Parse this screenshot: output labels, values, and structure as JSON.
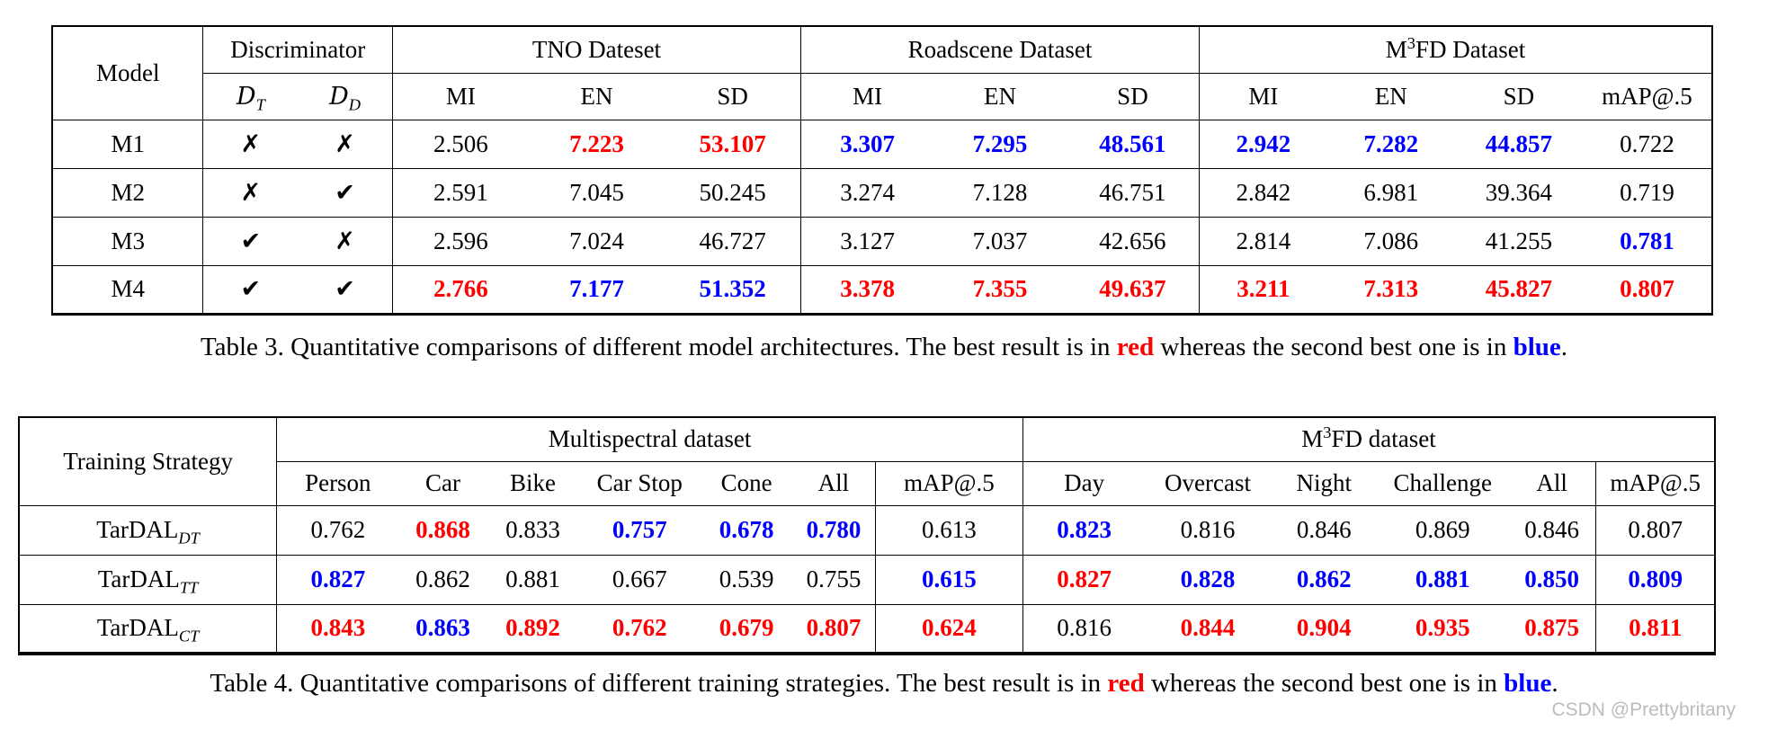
{
  "colors": {
    "best": "#ff0000",
    "second_best": "#0000ff",
    "text": "#000000",
    "watermark": "#bcbcbc"
  },
  "glyphs": {
    "check": "✔",
    "cross": "✗"
  },
  "table3": {
    "header": {
      "model": "Model",
      "discriminator": "Discriminator",
      "d_t": {
        "base": "D",
        "sub": "T"
      },
      "d_d": {
        "base": "D",
        "sub": "D"
      },
      "tno": "TNO Dateset",
      "roadscene": "Roadscene Dataset",
      "m3fd": {
        "pre": "M",
        "sup": "3",
        "post": "FD Dataset"
      },
      "metrics": [
        "MI",
        "EN",
        "SD"
      ],
      "map": "mAP@.5"
    },
    "rows": [
      {
        "model": "M1",
        "marks": [
          "cross",
          "cross"
        ],
        "cells": [
          [
            "2.506",
            "k"
          ],
          [
            "7.223",
            "r"
          ],
          [
            "53.107",
            "r"
          ],
          [
            "3.307",
            "b"
          ],
          [
            "7.295",
            "b"
          ],
          [
            "48.561",
            "b"
          ],
          [
            "2.942",
            "b"
          ],
          [
            "7.282",
            "b"
          ],
          [
            "44.857",
            "b"
          ],
          [
            "0.722",
            "k"
          ]
        ]
      },
      {
        "model": "M2",
        "marks": [
          "cross",
          "check"
        ],
        "cells": [
          [
            "2.591",
            "k"
          ],
          [
            "7.045",
            "k"
          ],
          [
            "50.245",
            "k"
          ],
          [
            "3.274",
            "k"
          ],
          [
            "7.128",
            "k"
          ],
          [
            "46.751",
            "k"
          ],
          [
            "2.842",
            "k"
          ],
          [
            "6.981",
            "k"
          ],
          [
            "39.364",
            "k"
          ],
          [
            "0.719",
            "k"
          ]
        ]
      },
      {
        "model": "M3",
        "marks": [
          "check",
          "cross"
        ],
        "cells": [
          [
            "2.596",
            "k"
          ],
          [
            "7.024",
            "k"
          ],
          [
            "46.727",
            "k"
          ],
          [
            "3.127",
            "k"
          ],
          [
            "7.037",
            "k"
          ],
          [
            "42.656",
            "k"
          ],
          [
            "2.814",
            "k"
          ],
          [
            "7.086",
            "k"
          ],
          [
            "41.255",
            "k"
          ],
          [
            "0.781",
            "b"
          ]
        ]
      },
      {
        "model": "M4",
        "marks": [
          "check",
          "check"
        ],
        "cells": [
          [
            "2.766",
            "r"
          ],
          [
            "7.177",
            "b"
          ],
          [
            "51.352",
            "b"
          ],
          [
            "3.378",
            "r"
          ],
          [
            "7.355",
            "r"
          ],
          [
            "49.637",
            "r"
          ],
          [
            "3.211",
            "r"
          ],
          [
            "7.313",
            "r"
          ],
          [
            "45.827",
            "r"
          ],
          [
            "0.807",
            "r"
          ]
        ]
      }
    ],
    "caption": {
      "prefix": "Table 3. Quantitative comparisons of different model architectures. The best result is in ",
      "red_word": "red",
      "middle": " whereas the second best one is in ",
      "blue_word": "blue",
      "suffix": "."
    }
  },
  "table4": {
    "header": {
      "strategy": "Training Strategy",
      "multispectral": "Multispectral dataset",
      "m3fd": {
        "pre": "M",
        "sup": "3",
        "post": "FD dataset"
      },
      "multispectral_cols": [
        "Person",
        "Car",
        "Bike",
        "Car Stop",
        "Cone",
        "All"
      ],
      "map1": "mAP@.5",
      "m3fd_cols": [
        "Day",
        "Overcast",
        "Night",
        "Challenge",
        "All"
      ],
      "map2": "mAP@.5"
    },
    "rows": [
      {
        "strategy": {
          "base": "TarDAL",
          "sub": "DT"
        },
        "cells": [
          [
            "0.762",
            "k"
          ],
          [
            "0.868",
            "r"
          ],
          [
            "0.833",
            "k"
          ],
          [
            "0.757",
            "b"
          ],
          [
            "0.678",
            "b"
          ],
          [
            "0.780",
            "b"
          ],
          [
            "0.613",
            "k"
          ],
          [
            "0.823",
            "b"
          ],
          [
            "0.816",
            "k"
          ],
          [
            "0.846",
            "k"
          ],
          [
            "0.869",
            "k"
          ],
          [
            "0.846",
            "k"
          ],
          [
            "0.807",
            "k"
          ]
        ]
      },
      {
        "strategy": {
          "base": "TarDAL",
          "sub": "TT"
        },
        "cells": [
          [
            "0.827",
            "b"
          ],
          [
            "0.862",
            "k"
          ],
          [
            "0.881",
            "k"
          ],
          [
            "0.667",
            "k"
          ],
          [
            "0.539",
            "k"
          ],
          [
            "0.755",
            "k"
          ],
          [
            "0.615",
            "b"
          ],
          [
            "0.827",
            "r"
          ],
          [
            "0.828",
            "b"
          ],
          [
            "0.862",
            "b"
          ],
          [
            "0.881",
            "b"
          ],
          [
            "0.850",
            "b"
          ],
          [
            "0.809",
            "b"
          ]
        ]
      },
      {
        "strategy": {
          "base": "TarDAL",
          "sub": "CT"
        },
        "cells": [
          [
            "0.843",
            "r"
          ],
          [
            "0.863",
            "b"
          ],
          [
            "0.892",
            "r"
          ],
          [
            "0.762",
            "r"
          ],
          [
            "0.679",
            "r"
          ],
          [
            "0.807",
            "r"
          ],
          [
            "0.624",
            "r"
          ],
          [
            "0.816",
            "k"
          ],
          [
            "0.844",
            "r"
          ],
          [
            "0.904",
            "r"
          ],
          [
            "0.935",
            "r"
          ],
          [
            "0.875",
            "r"
          ],
          [
            "0.811",
            "r"
          ]
        ]
      }
    ],
    "caption": {
      "prefix": "Table 4. Quantitative comparisons of different training strategies. The best result is in ",
      "red_word": "red",
      "middle": " whereas the second best one is in ",
      "blue_word": "blue",
      "suffix": "."
    }
  },
  "watermark": "CSDN @Prettybritany"
}
